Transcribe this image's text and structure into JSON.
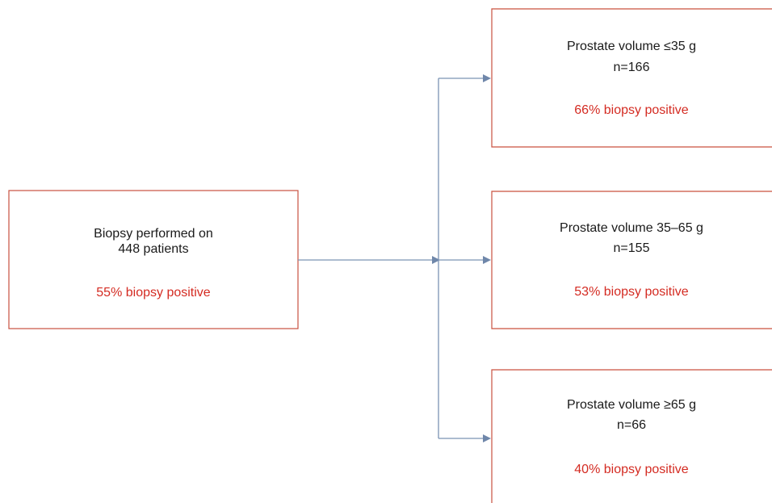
{
  "source": {
    "lines": [
      "Biopsy performed on",
      "448 patients"
    ],
    "result": "55% biopsy positive"
  },
  "groups": [
    {
      "label": "Prostate volume ≤35 g",
      "n": "n=166",
      "result": "66% biopsy positive"
    },
    {
      "label": "Prostate volume 35–65 g",
      "n": "n=155",
      "result": "53% biopsy positive"
    },
    {
      "label": "Prostate volume ≥65 g",
      "n": "n=66",
      "result": "40% biopsy positive"
    }
  ]
}
